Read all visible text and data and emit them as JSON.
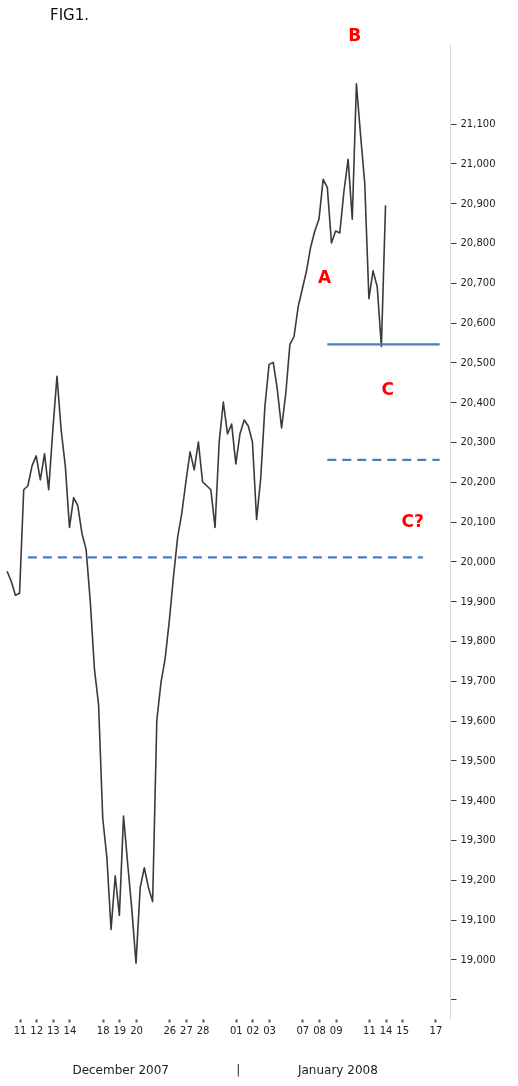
{
  "chart_data": {
    "type": "line",
    "title": "FIG1.",
    "categories": [
      null,
      null,
      null,
      "11",
      null,
      null,
      null,
      "12",
      null,
      null,
      null,
      "13",
      null,
      null,
      null,
      "14",
      null,
      null,
      null,
      null,
      null,
      null,
      null,
      "18",
      null,
      null,
      null,
      "19",
      null,
      null,
      null,
      "20",
      null,
      null,
      null,
      null,
      null,
      null,
      null,
      "26",
      null,
      null,
      null,
      "27",
      null,
      null,
      null,
      "28",
      null,
      null,
      null,
      null,
      null,
      null,
      null,
      "01",
      null,
      null,
      null,
      "02",
      null,
      null,
      null,
      "03",
      null,
      null,
      null,
      null,
      null,
      null,
      null,
      "07",
      null,
      null,
      null,
      "08",
      null,
      null,
      null,
      "09",
      null,
      null,
      null,
      null,
      null,
      null,
      null,
      "11",
      null,
      null,
      null,
      "14",
      null,
      null,
      null,
      "15",
      null,
      null,
      null,
      null,
      null,
      null,
      null,
      "17",
      null,
      null,
      null
    ],
    "ylim": [
      18850,
      21300
    ],
    "yticks": [
      {
        "value": 18900,
        "label": null
      },
      {
        "value": 19000,
        "label": "19,000"
      },
      {
        "value": 19100,
        "label": "19,100"
      },
      {
        "value": 19200,
        "label": "19,200"
      },
      {
        "value": 19300,
        "label": "19,300"
      },
      {
        "value": 19400,
        "label": "19,400"
      },
      {
        "value": 19500,
        "label": "19,500"
      },
      {
        "value": 19600,
        "label": "19,600"
      },
      {
        "value": 19700,
        "label": "19,700"
      },
      {
        "value": 19800,
        "label": "19,800"
      },
      {
        "value": 19900,
        "label": "19,900"
      },
      {
        "value": 20000,
        "label": "20,000"
      },
      {
        "value": 20100,
        "label": "20,100"
      },
      {
        "value": 20200,
        "label": "20,200"
      },
      {
        "value": 20300,
        "label": "20,300"
      },
      {
        "value": 20400,
        "label": "20,400"
      },
      {
        "value": 20500,
        "label": "20,500"
      },
      {
        "value": 20600,
        "label": "20,600"
      },
      {
        "value": 20700,
        "label": "20,700"
      },
      {
        "value": 20800,
        "label": "20,800"
      },
      {
        "value": 20900,
        "label": "20,900"
      },
      {
        "value": 21000,
        "label": "21,000"
      },
      {
        "value": 21100,
        "label": "21,100"
      }
    ],
    "series": [
      {
        "color": "#3a3a3a",
        "line_style": "solid",
        "values": [
          19975,
          19950,
          19915,
          19920,
          20180,
          20190,
          20240,
          20265,
          20205,
          20270,
          20180,
          20330,
          20465,
          20330,
          20240,
          20085,
          20160,
          20140,
          20070,
          20030,
          19900,
          19730,
          19640,
          19355,
          19255,
          19075,
          19210,
          19110,
          19360,
          19240,
          19125,
          18990,
          19180,
          19230,
          19180,
          19145,
          19600,
          19695,
          19755,
          19850,
          19960,
          20060,
          20120,
          20200,
          20275,
          20230,
          20300,
          20200,
          20190,
          20180,
          20085,
          20300,
          20400,
          20320,
          20345,
          20245,
          20320,
          20355,
          20340,
          20300,
          20105,
          20210,
          20390,
          20495,
          20500,
          20430,
          20335,
          20420,
          20545,
          20565,
          20640,
          20685,
          20730,
          20790,
          20830,
          20860,
          20960,
          20940,
          20800,
          20830,
          20825,
          20930,
          21010,
          20860,
          21200,
          21070,
          20950,
          20660,
          20730,
          20690,
          20540,
          20895,
          null,
          null,
          null,
          null,
          null,
          null,
          null,
          null,
          null,
          null,
          null,
          null,
          null,
          null,
          null
        ]
      },
      {
        "color": "#4a7ebb",
        "line_style": "solid",
        "values": [
          null,
          null,
          null,
          null,
          null,
          null,
          null,
          null,
          null,
          null,
          null,
          null,
          null,
          null,
          null,
          null,
          null,
          null,
          null,
          null,
          null,
          null,
          null,
          null,
          null,
          null,
          null,
          null,
          null,
          null,
          null,
          null,
          null,
          null,
          null,
          null,
          null,
          null,
          null,
          null,
          null,
          null,
          null,
          null,
          null,
          null,
          null,
          null,
          null,
          null,
          null,
          null,
          null,
          null,
          null,
          null,
          null,
          null,
          null,
          null,
          null,
          null,
          null,
          null,
          null,
          null,
          null,
          null,
          null,
          null,
          null,
          null,
          null,
          null,
          null,
          null,
          null,
          20545,
          20545,
          20545,
          20545,
          20545,
          20545,
          20545,
          20545,
          20545,
          20545,
          20545,
          20545,
          20545,
          20545,
          20545,
          20545,
          20545,
          20545,
          20545,
          20545,
          20545,
          20545,
          20545,
          20545,
          20545,
          20545,
          20545,
          20545,
          null,
          null
        ]
      },
      {
        "color": "#4a7ebb",
        "line_style": "dashed",
        "values": [
          null,
          null,
          null,
          null,
          null,
          null,
          null,
          null,
          null,
          null,
          null,
          null,
          null,
          null,
          null,
          null,
          null,
          null,
          null,
          null,
          null,
          null,
          null,
          null,
          null,
          null,
          null,
          null,
          null,
          null,
          null,
          null,
          null,
          null,
          null,
          null,
          null,
          null,
          null,
          null,
          null,
          null,
          null,
          null,
          null,
          null,
          null,
          null,
          null,
          null,
          null,
          null,
          null,
          null,
          null,
          null,
          null,
          null,
          null,
          null,
          null,
          null,
          null,
          null,
          null,
          null,
          null,
          null,
          null,
          null,
          null,
          null,
          null,
          null,
          null,
          null,
          null,
          20255,
          20255,
          20255,
          20255,
          20255,
          20255,
          20255,
          20255,
          20255,
          20255,
          20255,
          20255,
          20255,
          20255,
          20255,
          20255,
          20255,
          20255,
          20255,
          20255,
          20255,
          20255,
          20255,
          20255,
          20255,
          20255,
          20255,
          20255,
          null,
          null
        ]
      },
      {
        "color": "#4a7ebb",
        "line_style": "dashed",
        "values": [
          null,
          null,
          null,
          null,
          null,
          20010,
          20010,
          20010,
          20010,
          20010,
          20010,
          20010,
          20010,
          20010,
          20010,
          20010,
          20010,
          20010,
          20010,
          20010,
          20010,
          20010,
          20010,
          20010,
          20010,
          20010,
          20010,
          20010,
          20010,
          20010,
          20010,
          20010,
          20010,
          20010,
          20010,
          20010,
          20010,
          20010,
          20010,
          20010,
          20010,
          20010,
          20010,
          20010,
          20010,
          20010,
          20010,
          20010,
          20010,
          20010,
          20010,
          20010,
          20010,
          20010,
          20010,
          20010,
          20010,
          20010,
          20010,
          20010,
          20010,
          20010,
          20010,
          20010,
          20010,
          20010,
          20010,
          20010,
          20010,
          20010,
          20010,
          20010,
          20010,
          20010,
          20010,
          20010,
          20010,
          20010,
          20010,
          20010,
          20010,
          20010,
          20010,
          20010,
          20010,
          20010,
          20010,
          20010,
          20010,
          20010,
          20010,
          20010,
          20010,
          20010,
          20010,
          20010,
          20010,
          20010,
          20010,
          20010,
          20010,
          null,
          null,
          null,
          null,
          null,
          null
        ]
      }
    ],
    "annotations": [
      "B",
      "A",
      "C",
      "C?",
      "December 2007",
      "|",
      "January 2008"
    ]
  }
}
